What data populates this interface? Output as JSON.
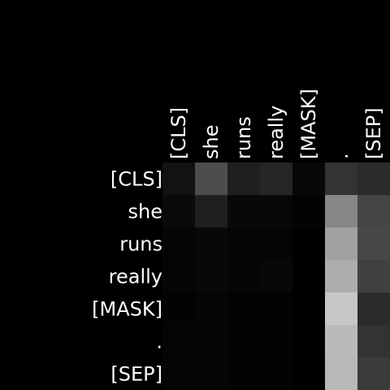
{
  "chart_data": {
    "type": "heatmap",
    "x_labels": [
      "[CLS]",
      "she",
      "runs",
      "really",
      "[MASK]",
      ".",
      "[SEP]"
    ],
    "y_labels": [
      "[CLS]",
      "she",
      "runs",
      "really",
      "[MASK]",
      ".",
      "[SEP]"
    ],
    "values": [
      [
        0.07,
        0.3,
        0.12,
        0.15,
        0.03,
        0.2,
        0.17
      ],
      [
        0.04,
        0.12,
        0.03,
        0.03,
        0.01,
        0.53,
        0.27
      ],
      [
        0.02,
        0.03,
        0.02,
        0.02,
        0.0,
        0.63,
        0.28
      ],
      [
        0.02,
        0.03,
        0.02,
        0.03,
        0.0,
        0.68,
        0.25
      ],
      [
        0.01,
        0.02,
        0.01,
        0.01,
        0.0,
        0.78,
        0.17
      ],
      [
        0.02,
        0.02,
        0.01,
        0.01,
        0.0,
        0.73,
        0.2
      ],
      [
        0.02,
        0.02,
        0.01,
        0.01,
        0.0,
        0.72,
        0.23
      ]
    ],
    "value_range": [
      0,
      1
    ],
    "colormap": "grayscale",
    "x_tick_position": "top",
    "x_tick_rotation": "vertical",
    "grid": false,
    "colorbar": false,
    "title": "",
    "xlabel": "",
    "ylabel": ""
  },
  "colors": {
    "background": "#000000",
    "text": "#ffffff",
    "cmap_low": "#000000",
    "cmap_high": "#ffffff"
  }
}
